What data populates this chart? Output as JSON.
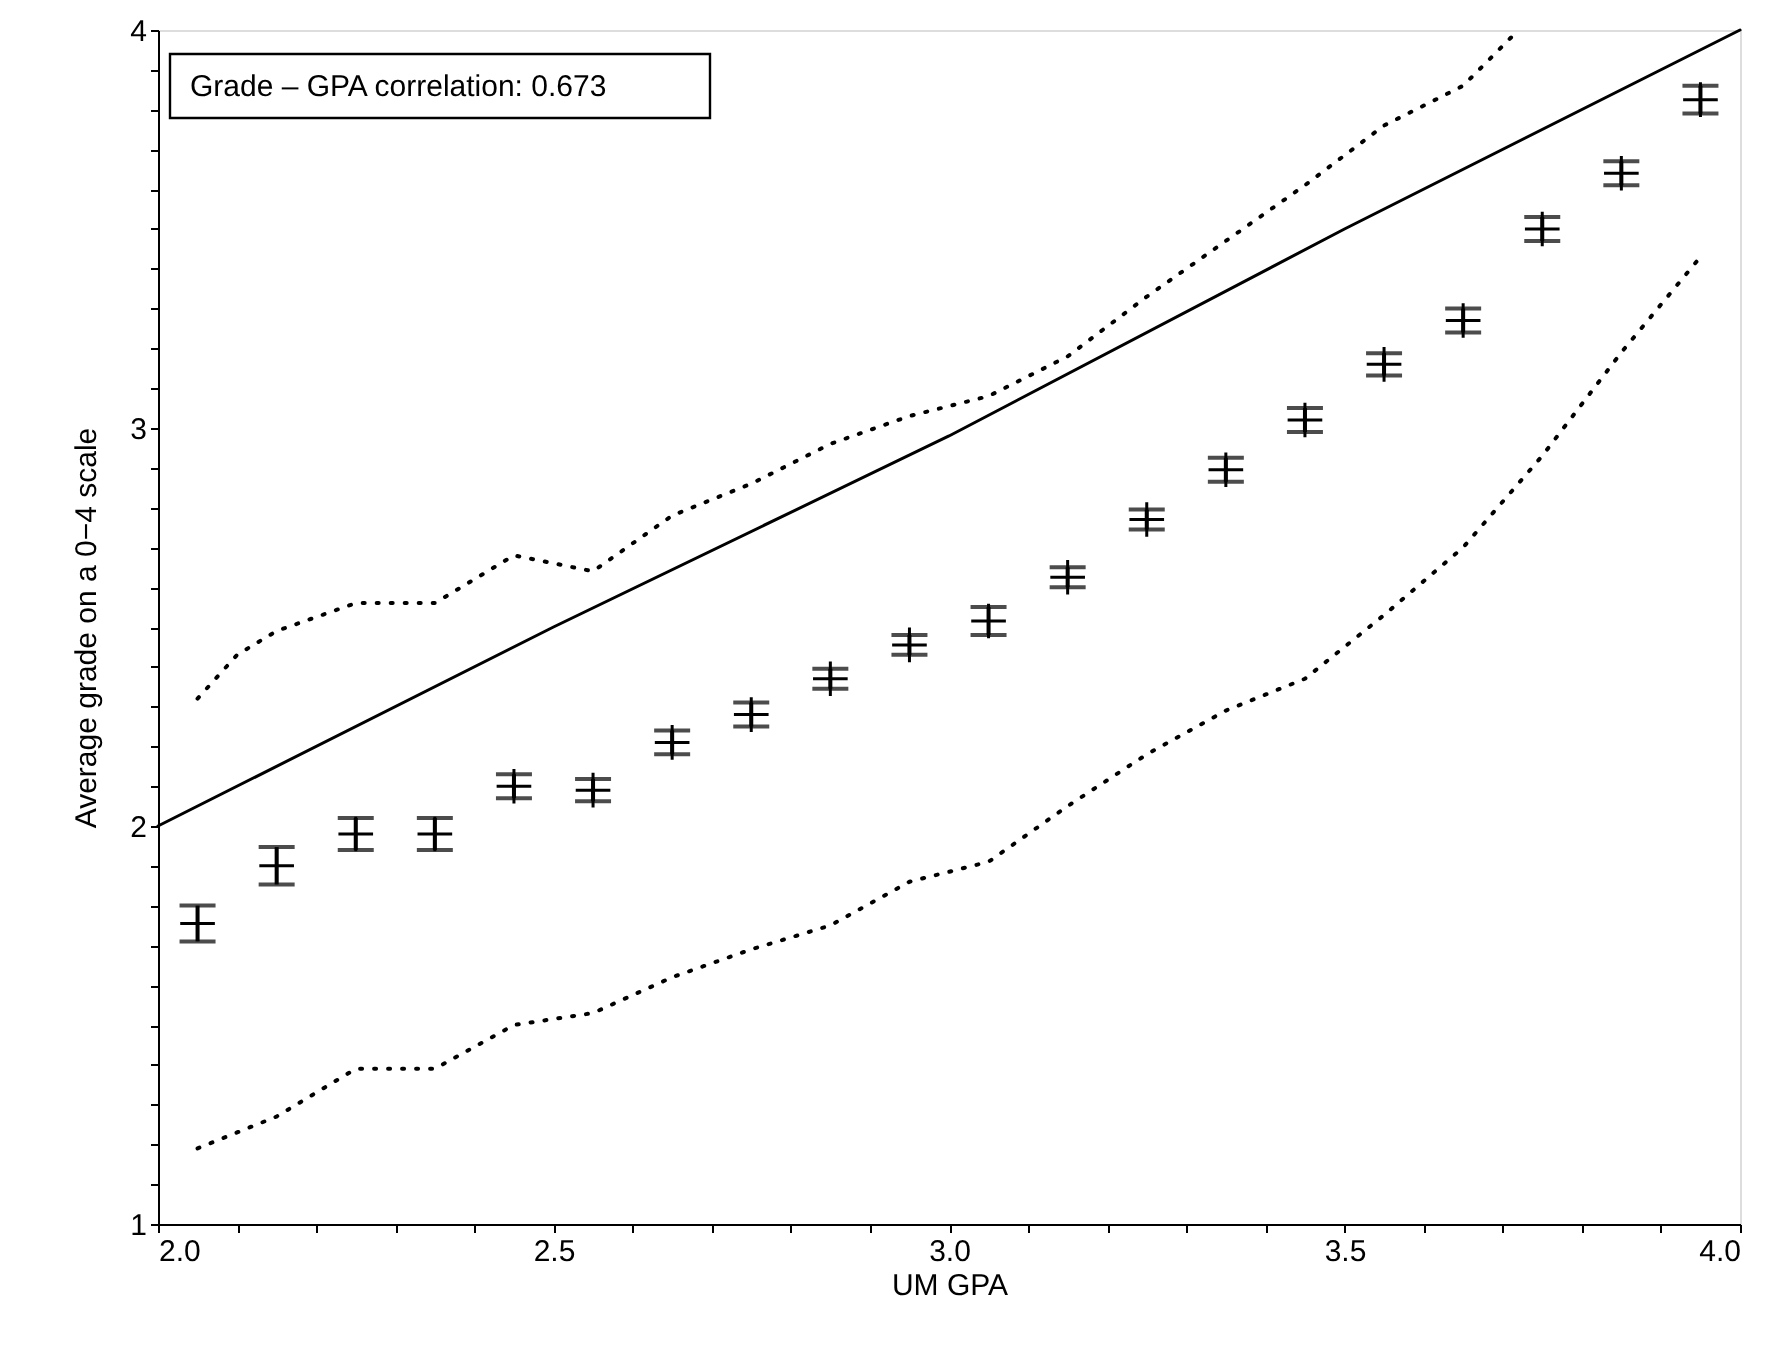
{
  "chart_data": {
    "type": "scatter",
    "xlabel": "UM GPA",
    "ylabel": "Average grade on a 0−4 scale",
    "annotations": [
      "Grade – GPA correlation: 0.673"
    ],
    "x": [
      2.05,
      2.15,
      2.25,
      2.35,
      2.45,
      2.55,
      2.65,
      2.75,
      2.85,
      2.95,
      3.05,
      3.15,
      3.25,
      3.35,
      3.45,
      3.55,
      3.65,
      3.75,
      3.85,
      3.95
    ],
    "series": [
      {
        "color": "#000000",
        "marker": "cross",
        "values": [
          1.755,
          1.9,
          1.98,
          1.98,
          2.1,
          2.09,
          2.21,
          2.28,
          2.37,
          2.455,
          2.515,
          2.625,
          2.77,
          2.895,
          3.02,
          3.16,
          3.27,
          3.5,
          3.64,
          3.825
        ],
        "errors": [
          0.045,
          0.047,
          0.04,
          0.04,
          0.03,
          0.028,
          0.03,
          0.03,
          0.025,
          0.025,
          0.035,
          0.025,
          0.025,
          0.03,
          0.03,
          0.028,
          0.03,
          0.03,
          0.03,
          0.035
        ]
      },
      {
        "type": "line",
        "color": "#000000",
        "line_style": "solid",
        "x": [
          2.0,
          2.5,
          3.0,
          3.5,
          4.0
        ],
        "values": [
          2.0,
          2.5,
          2.98,
          3.5,
          4.0
        ]
      },
      {
        "type": "line",
        "color": "#000000",
        "line_style": "dotted",
        "x": [
          2.05,
          2.1,
          2.15,
          2.25,
          2.35,
          2.45,
          2.55,
          2.65,
          2.75,
          2.85,
          2.95,
          3.05,
          3.15,
          3.25,
          3.35,
          3.45,
          3.55,
          3.65,
          3.72
        ],
        "values": [
          2.32,
          2.43,
          2.49,
          2.56,
          2.56,
          2.68,
          2.64,
          2.78,
          2.86,
          2.96,
          3.03,
          3.08,
          3.18,
          3.33,
          3.47,
          3.61,
          3.76,
          3.86,
          4.0
        ]
      },
      {
        "type": "line",
        "color": "#000000",
        "line_style": "dotted",
        "x": [
          2.05,
          2.15,
          2.25,
          2.35,
          2.45,
          2.55,
          2.65,
          2.75,
          2.85,
          2.95,
          3.05,
          3.15,
          3.25,
          3.35,
          3.45,
          3.55,
          3.65,
          3.75,
          3.85,
          3.95
        ],
        "values": [
          1.19,
          1.27,
          1.39,
          1.39,
          1.5,
          1.53,
          1.62,
          1.69,
          1.75,
          1.86,
          1.91,
          2.05,
          2.18,
          2.29,
          2.37,
          2.53,
          2.7,
          2.93,
          3.19,
          3.43
        ]
      }
    ],
    "xlim": [
      2.0,
      4.0
    ],
    "xticks": [
      {
        "value": 2.0,
        "label": "2.0"
      },
      {
        "value": 2.1,
        "label": null
      },
      {
        "value": 2.2,
        "label": null
      },
      {
        "value": 2.3,
        "label": null
      },
      {
        "value": 2.4,
        "label": null
      },
      {
        "value": 2.5,
        "label": "2.5"
      },
      {
        "value": 2.6,
        "label": null
      },
      {
        "value": 2.7,
        "label": null
      },
      {
        "value": 2.8,
        "label": null
      },
      {
        "value": 2.9,
        "label": null
      },
      {
        "value": 3.0,
        "label": "3.0"
      },
      {
        "value": 3.1,
        "label": null
      },
      {
        "value": 3.2,
        "label": null
      },
      {
        "value": 3.3,
        "label": null
      },
      {
        "value": 3.4,
        "label": null
      },
      {
        "value": 3.5,
        "label": "3.5"
      },
      {
        "value": 3.6,
        "label": null
      },
      {
        "value": 3.7,
        "label": null
      },
      {
        "value": 3.8,
        "label": null
      },
      {
        "value": 3.9,
        "label": null
      },
      {
        "value": 4.0,
        "label": "4.0"
      }
    ],
    "ylim": [
      1,
      4
    ],
    "yticks": [
      1,
      {
        "value": 1.1,
        "label": null
      },
      {
        "value": 1.2,
        "label": null
      },
      {
        "value": 1.3,
        "label": null
      },
      {
        "value": 1.4,
        "label": null
      },
      {
        "value": 1.5,
        "label": null
      },
      {
        "value": 1.6,
        "label": null
      },
      {
        "value": 1.7,
        "label": null
      },
      {
        "value": 1.8,
        "label": null
      },
      {
        "value": 1.9,
        "label": null
      },
      2,
      {
        "value": 2.1,
        "label": null
      },
      {
        "value": 2.2,
        "label": null
      },
      {
        "value": 2.3,
        "label": null
      },
      {
        "value": 2.4,
        "label": null
      },
      {
        "value": 2.5,
        "label": null
      },
      {
        "value": 2.6,
        "label": null
      },
      {
        "value": 2.7,
        "label": null
      },
      {
        "value": 2.8,
        "label": null
      },
      {
        "value": 2.9,
        "label": null
      },
      3,
      {
        "value": 3.1,
        "label": null
      },
      {
        "value": 3.2,
        "label": null
      },
      {
        "value": 3.3,
        "label": null
      },
      {
        "value": 3.4,
        "label": null
      },
      {
        "value": 3.5,
        "label": null
      },
      {
        "value": 3.6,
        "label": null
      },
      {
        "value": 3.7,
        "label": null
      },
      {
        "value": 3.8,
        "label": null
      },
      {
        "value": 3.9,
        "label": null
      },
      4
    ],
    "grid": false
  }
}
